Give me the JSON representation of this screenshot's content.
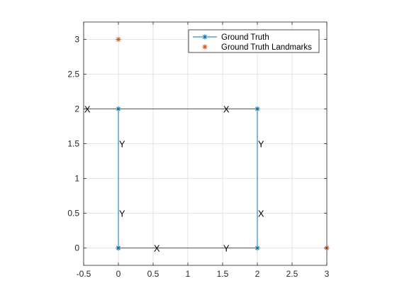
{
  "chart_data": {
    "type": "line",
    "xlim": [
      -0.5,
      3
    ],
    "ylim": [
      -0.25,
      3.25
    ],
    "x_ticks": [
      "-0.5",
      "0",
      "0.5",
      "1",
      "1.5",
      "2",
      "2.5",
      "3"
    ],
    "y_ticks": [
      "0",
      "0.5",
      "1",
      "1.5",
      "2",
      "2.5",
      "3"
    ],
    "grid": true,
    "legend_position": "top-right",
    "series": [
      {
        "name": "Ground Truth",
        "type": "line",
        "color": "#0072BD",
        "marker": "asterisk",
        "x": [
          0,
          2,
          2,
          0,
          0
        ],
        "y": [
          0,
          0,
          2,
          2,
          0
        ]
      },
      {
        "name": "Ground Truth Landmarks",
        "type": "scatter",
        "color": "#D95319",
        "marker": "asterisk",
        "x": [
          0,
          3
        ],
        "y": [
          3,
          0
        ]
      }
    ],
    "frame_axes": [
      {
        "x": [
          0,
          0.5
        ],
        "y": [
          0,
          0
        ],
        "color": "#D62728"
      },
      {
        "x": [
          0,
          0
        ],
        "y": [
          0,
          0.5
        ],
        "color": "#2CA02C"
      },
      {
        "x": [
          2,
          1.5
        ],
        "y": [
          0,
          0
        ],
        "color": "#2CA02C"
      },
      {
        "x": [
          2,
          2
        ],
        "y": [
          0,
          0.5
        ],
        "color": "#D62728"
      },
      {
        "x": [
          2,
          1.5
        ],
        "y": [
          2,
          2
        ],
        "color": "#D62728"
      },
      {
        "x": [
          2,
          2
        ],
        "y": [
          2,
          1.5
        ],
        "color": "#2CA02C"
      },
      {
        "x": [
          0,
          -0.5
        ],
        "y": [
          2,
          2
        ],
        "color": "#D62728"
      },
      {
        "x": [
          0,
          0
        ],
        "y": [
          2,
          1.5
        ],
        "color": "#2CA02C"
      }
    ],
    "annotations": [
      {
        "text": "X",
        "x": 0.55,
        "y": 0
      },
      {
        "text": "Y",
        "x": 0.05,
        "y": 0.5
      },
      {
        "text": "Y",
        "x": 1.55,
        "y": 0
      },
      {
        "text": "X",
        "x": 2.05,
        "y": 0.5
      },
      {
        "text": "X",
        "x": 1.55,
        "y": 2
      },
      {
        "text": "Y",
        "x": 2.05,
        "y": 1.5
      },
      {
        "text": "X",
        "x": -0.45,
        "y": 2
      },
      {
        "text": "Y",
        "x": 0.05,
        "y": 1.5
      }
    ]
  }
}
